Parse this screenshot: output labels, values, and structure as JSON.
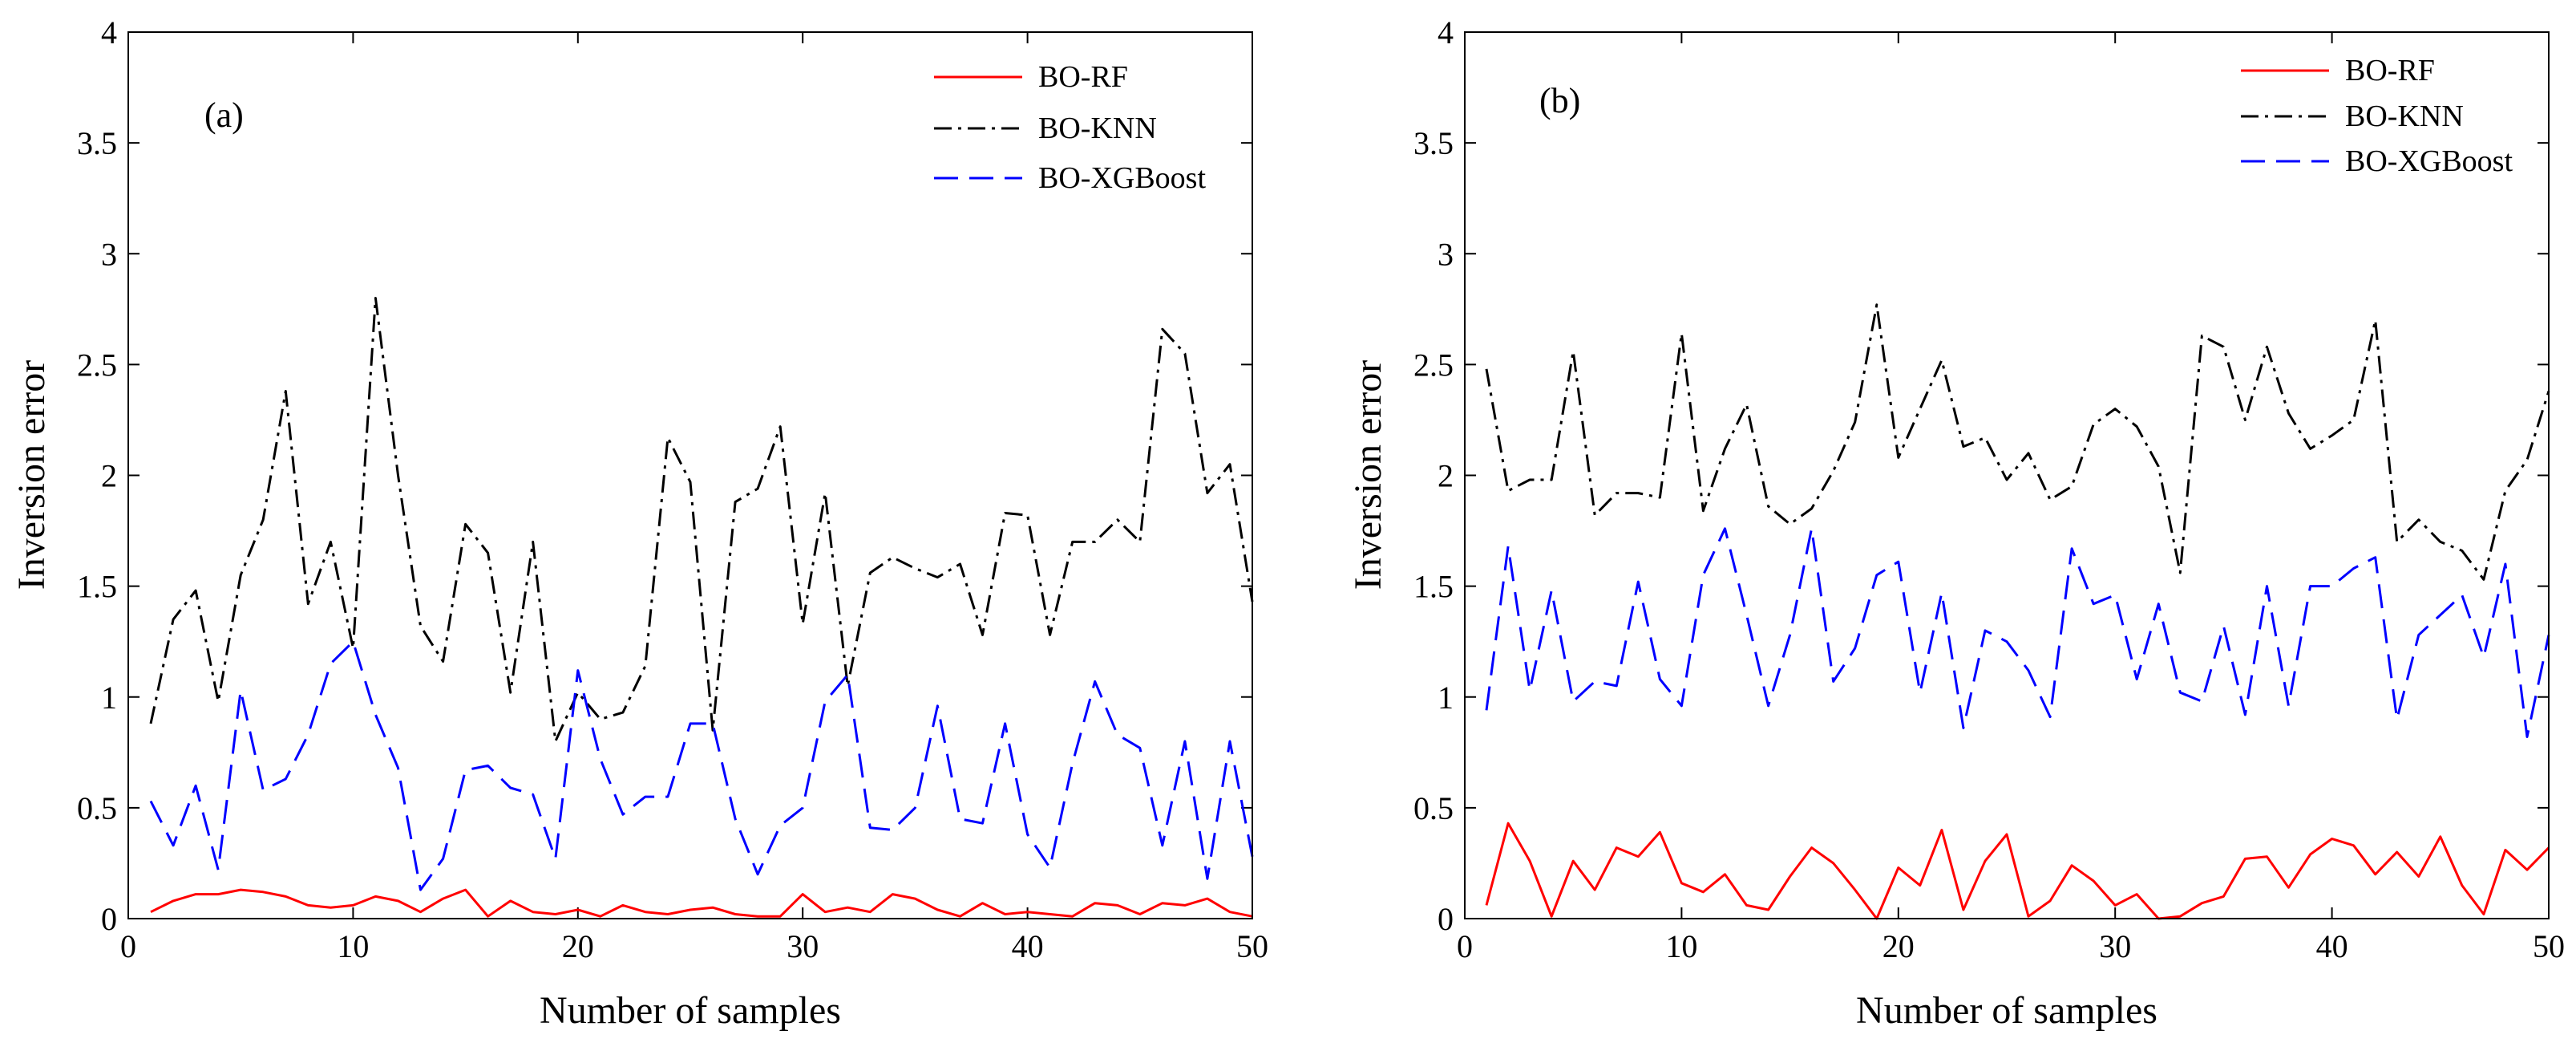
{
  "chart_data": [
    {
      "type": "line",
      "panel_label": "(a)",
      "xlabel": "Number of samples",
      "ylabel": "Inversion error",
      "xlim": [
        0,
        50
      ],
      "ylim": [
        0,
        4
      ],
      "xticks": [
        0,
        10,
        20,
        30,
        40,
        50
      ],
      "yticks": [
        0,
        0.5,
        1,
        1.5,
        2,
        2.5,
        3,
        3.5,
        4
      ],
      "ytick_labels": [
        "0",
        "0.5",
        "1",
        "1.5",
        "2",
        "2.5",
        "3",
        "3.5",
        "4"
      ],
      "legend_position": "top-right",
      "x": [
        1,
        2,
        3,
        4,
        5,
        6,
        7,
        8,
        9,
        10,
        11,
        12,
        13,
        14,
        15,
        16,
        17,
        18,
        19,
        20,
        21,
        22,
        23,
        24,
        25,
        26,
        27,
        28,
        29,
        30,
        31,
        32,
        33,
        34,
        35,
        36,
        37,
        38,
        39,
        40,
        41,
        42,
        43,
        44,
        45,
        46,
        47,
        48,
        49,
        50
      ],
      "series": [
        {
          "name": "BO-RF",
          "color": "#ff0000",
          "style": "solid",
          "values": [
            0.03,
            0.08,
            0.11,
            0.11,
            0.13,
            0.12,
            0.1,
            0.06,
            0.05,
            0.06,
            0.1,
            0.08,
            0.03,
            0.09,
            0.13,
            0.01,
            0.08,
            0.03,
            0.02,
            0.04,
            0.01,
            0.06,
            0.03,
            0.02,
            0.04,
            0.05,
            0.02,
            0.01,
            0.01,
            0.11,
            0.03,
            0.05,
            0.03,
            0.11,
            0.09,
            0.04,
            0.01,
            0.07,
            0.02,
            0.03,
            0.02,
            0.01,
            0.07,
            0.06,
            0.02,
            0.07,
            0.06,
            0.09,
            0.03,
            0.01
          ]
        },
        {
          "name": "BO-KNN",
          "color": "#000000",
          "style": "dashdot",
          "values": [
            0.88,
            1.35,
            1.48,
            0.98,
            1.55,
            1.8,
            2.38,
            1.42,
            1.7,
            1.22,
            2.8,
            2.0,
            1.32,
            1.16,
            1.78,
            1.65,
            1.02,
            1.7,
            0.8,
            1.02,
            0.9,
            0.93,
            1.14,
            2.17,
            1.97,
            0.85,
            1.88,
            1.94,
            2.22,
            1.33,
            1.92,
            1.05,
            1.56,
            1.63,
            1.58,
            1.54,
            1.6,
            1.28,
            1.83,
            1.82,
            1.28,
            1.7,
            1.7,
            1.8,
            1.7,
            2.66,
            2.55,
            1.92,
            2.05,
            1.43
          ]
        },
        {
          "name": "BO-XGBoost",
          "color": "#0000ff",
          "style": "dashed",
          "values": [
            0.53,
            0.33,
            0.6,
            0.22,
            1.03,
            0.58,
            0.63,
            0.83,
            1.15,
            1.25,
            0.92,
            0.68,
            0.13,
            0.27,
            0.67,
            0.69,
            0.59,
            0.56,
            0.27,
            1.12,
            0.72,
            0.47,
            0.55,
            0.55,
            0.88,
            0.88,
            0.45,
            0.2,
            0.42,
            0.5,
            0.98,
            1.1,
            0.41,
            0.4,
            0.5,
            0.96,
            0.45,
            0.43,
            0.88,
            0.38,
            0.23,
            0.7,
            1.07,
            0.83,
            0.77,
            0.33,
            0.8,
            0.18,
            0.8,
            0.28
          ]
        }
      ]
    },
    {
      "type": "line",
      "panel_label": "(b)",
      "xlabel": "Number of samples",
      "ylabel": "Inversion error",
      "xlim": [
        0,
        50
      ],
      "ylim": [
        0,
        4
      ],
      "xticks": [
        0,
        10,
        20,
        30,
        40,
        50
      ],
      "yticks": [
        0,
        0.5,
        1,
        1.5,
        2,
        2.5,
        3,
        3.5,
        4
      ],
      "ytick_labels": [
        "0",
        "0.5",
        "1",
        "1.5",
        "2",
        "2.5",
        "3",
        "3.5",
        "4"
      ],
      "legend_position": "top-right",
      "x": [
        1,
        2,
        3,
        4,
        5,
        6,
        7,
        8,
        9,
        10,
        11,
        12,
        13,
        14,
        15,
        16,
        17,
        18,
        19,
        20,
        21,
        22,
        23,
        24,
        25,
        26,
        27,
        28,
        29,
        30,
        31,
        32,
        33,
        34,
        35,
        36,
        37,
        38,
        39,
        40,
        41,
        42,
        43,
        44,
        45,
        46,
        47,
        48,
        49,
        50
      ],
      "series": [
        {
          "name": "BO-RF",
          "color": "#ff0000",
          "style": "solid",
          "values": [
            0.06,
            0.43,
            0.26,
            0.01,
            0.26,
            0.13,
            0.32,
            0.28,
            0.39,
            0.16,
            0.12,
            0.2,
            0.06,
            0.04,
            0.19,
            0.32,
            0.25,
            0.13,
            0.0,
            0.23,
            0.15,
            0.4,
            0.04,
            0.26,
            0.38,
            0.01,
            0.08,
            0.24,
            0.17,
            0.06,
            0.11,
            0.0,
            0.01,
            0.07,
            0.1,
            0.27,
            0.28,
            0.14,
            0.29,
            0.36,
            0.33,
            0.2,
            0.3,
            0.19,
            0.37,
            0.15,
            0.02,
            0.31,
            0.22,
            0.32
          ]
        },
        {
          "name": "BO-KNN",
          "color": "#000000",
          "style": "dashdot",
          "values": [
            2.48,
            1.93,
            1.98,
            1.98,
            2.56,
            1.82,
            1.92,
            1.92,
            1.9,
            2.64,
            1.84,
            2.12,
            2.32,
            1.86,
            1.78,
            1.85,
            2.02,
            2.24,
            2.77,
            2.08,
            2.3,
            2.52,
            2.13,
            2.17,
            1.98,
            2.1,
            1.89,
            1.95,
            2.23,
            2.3,
            2.22,
            2.04,
            1.56,
            2.63,
            2.58,
            2.25,
            2.58,
            2.28,
            2.12,
            2.18,
            2.25,
            2.7,
            1.7,
            1.8,
            1.7,
            1.66,
            1.53,
            1.93,
            2.07,
            2.38
          ]
        },
        {
          "name": "BO-XGBoost",
          "color": "#0000ff",
          "style": "dashed",
          "values": [
            0.94,
            1.68,
            1.03,
            1.48,
            0.98,
            1.07,
            1.05,
            1.52,
            1.08,
            0.96,
            1.55,
            1.76,
            1.37,
            0.96,
            1.28,
            1.76,
            1.07,
            1.22,
            1.55,
            1.61,
            1.02,
            1.47,
            0.86,
            1.3,
            1.25,
            1.12,
            0.91,
            1.67,
            1.42,
            1.46,
            1.08,
            1.42,
            1.02,
            0.98,
            1.32,
            0.92,
            1.5,
            0.96,
            1.5,
            1.5,
            1.58,
            1.63,
            0.9,
            1.28,
            1.37,
            1.46,
            1.18,
            1.6,
            0.82,
            1.28
          ]
        }
      ]
    }
  ]
}
